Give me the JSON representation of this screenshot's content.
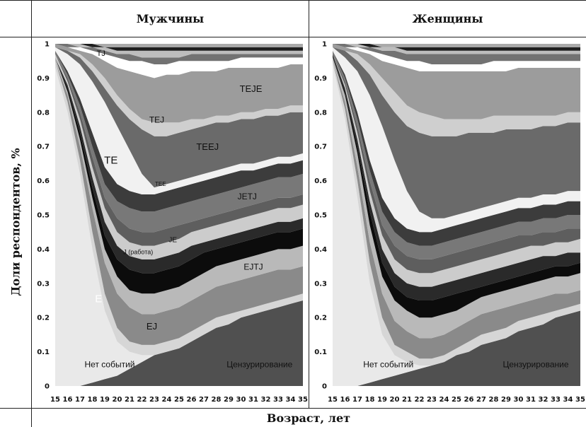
{
  "header": {
    "left": "Мужчины",
    "right": "Женщины"
  },
  "ylabel": "Доли респондентов, %",
  "xlabel": "Возраст, лет",
  "colors": [
    "#505050",
    "#e9e9e9",
    "#d6d6d6",
    "#8a8a8a",
    "#b9b9b9",
    "#0c0c0c",
    "#2a2a2a",
    "#cccccc",
    "#5e5e5e",
    "#787878",
    "#3c3c3c",
    "#f1f1f1",
    "#6a6a6a",
    "#cfcfcf",
    "#9c9c9c",
    "#ffffff",
    "#727272",
    "#bdbdbd",
    "#1f1f1f",
    "#aaaaaa"
  ],
  "chart_data": [
    {
      "type": "area",
      "title": "Мужчины",
      "xlabel": "Возраст, лет",
      "ylabel": "Доли респондентов, %",
      "x": [
        15,
        16,
        17,
        18,
        19,
        20,
        21,
        22,
        23,
        24,
        25,
        26,
        27,
        28,
        29,
        30,
        31,
        32,
        33,
        34,
        35
      ],
      "ylim": [
        0,
        1
      ],
      "yticks": [
        "0",
        "0.1",
        "0.2",
        "0.3",
        "0.4",
        "0.5",
        "0.6",
        "0.7",
        "0.8",
        "0.9",
        "1"
      ],
      "boundaries": [
        [
          0.0,
          0.0,
          0.0,
          0.01,
          0.02,
          0.03,
          0.05,
          0.07,
          0.09,
          0.11,
          0.13,
          0.15,
          0.17,
          0.19,
          0.21,
          0.23,
          0.24,
          0.26,
          0.28,
          0.3,
          0.31
        ],
        [
          0.93,
          0.8,
          0.62,
          0.4,
          0.22,
          0.13,
          0.1,
          0.09,
          0.09,
          0.1,
          0.11,
          0.13,
          0.15,
          0.17,
          0.18,
          0.2,
          0.21,
          0.22,
          0.23,
          0.24,
          0.25
        ],
        [
          0.95,
          0.83,
          0.66,
          0.45,
          0.27,
          0.17,
          0.13,
          0.12,
          0.12,
          0.13,
          0.14,
          0.16,
          0.18,
          0.2,
          0.21,
          0.22,
          0.23,
          0.24,
          0.25,
          0.26,
          0.27
        ],
        [
          0.95,
          0.85,
          0.7,
          0.52,
          0.36,
          0.27,
          0.23,
          0.21,
          0.21,
          0.22,
          0.23,
          0.25,
          0.27,
          0.29,
          0.3,
          0.31,
          0.32,
          0.33,
          0.34,
          0.34,
          0.35
        ],
        [
          0.96,
          0.86,
          0.72,
          0.55,
          0.4,
          0.32,
          0.28,
          0.27,
          0.27,
          0.28,
          0.29,
          0.31,
          0.33,
          0.35,
          0.36,
          0.37,
          0.38,
          0.39,
          0.4,
          0.4,
          0.41
        ],
        [
          0.96,
          0.87,
          0.74,
          0.58,
          0.44,
          0.37,
          0.34,
          0.33,
          0.33,
          0.34,
          0.35,
          0.37,
          0.39,
          0.4,
          0.41,
          0.42,
          0.43,
          0.44,
          0.45,
          0.45,
          0.46
        ],
        [
          0.96,
          0.88,
          0.76,
          0.61,
          0.48,
          0.41,
          0.38,
          0.37,
          0.37,
          0.38,
          0.39,
          0.41,
          0.42,
          0.43,
          0.44,
          0.45,
          0.46,
          0.47,
          0.48,
          0.48,
          0.49
        ],
        [
          0.97,
          0.89,
          0.78,
          0.64,
          0.52,
          0.45,
          0.42,
          0.41,
          0.41,
          0.42,
          0.43,
          0.45,
          0.46,
          0.47,
          0.48,
          0.49,
          0.5,
          0.51,
          0.52,
          0.52,
          0.53
        ],
        [
          0.97,
          0.9,
          0.8,
          0.67,
          0.55,
          0.49,
          0.46,
          0.45,
          0.45,
          0.46,
          0.47,
          0.48,
          0.49,
          0.5,
          0.51,
          0.52,
          0.53,
          0.54,
          0.55,
          0.55,
          0.56
        ],
        [
          0.98,
          0.91,
          0.82,
          0.7,
          0.59,
          0.54,
          0.52,
          0.51,
          0.51,
          0.52,
          0.53,
          0.54,
          0.55,
          0.56,
          0.57,
          0.58,
          0.59,
          0.6,
          0.61,
          0.61,
          0.62
        ],
        [
          0.98,
          0.92,
          0.84,
          0.74,
          0.64,
          0.59,
          0.57,
          0.56,
          0.56,
          0.57,
          0.58,
          0.59,
          0.6,
          0.61,
          0.62,
          0.63,
          0.63,
          0.64,
          0.65,
          0.65,
          0.66
        ],
        [
          0.99,
          0.97,
          0.94,
          0.89,
          0.83,
          0.76,
          0.69,
          0.62,
          0.58,
          0.59,
          0.6,
          0.61,
          0.62,
          0.63,
          0.64,
          0.65,
          0.65,
          0.66,
          0.67,
          0.67,
          0.68
        ],
        [
          0.99,
          0.98,
          0.96,
          0.92,
          0.87,
          0.82,
          0.78,
          0.75,
          0.73,
          0.73,
          0.74,
          0.75,
          0.76,
          0.77,
          0.77,
          0.78,
          0.78,
          0.79,
          0.79,
          0.8,
          0.8
        ],
        [
          0.99,
          0.98,
          0.97,
          0.94,
          0.9,
          0.85,
          0.81,
          0.78,
          0.77,
          0.77,
          0.77,
          0.78,
          0.78,
          0.79,
          0.79,
          0.8,
          0.8,
          0.81,
          0.81,
          0.82,
          0.82
        ],
        [
          1.0,
          0.99,
          0.98,
          0.97,
          0.95,
          0.93,
          0.92,
          0.91,
          0.9,
          0.91,
          0.91,
          0.92,
          0.92,
          0.92,
          0.93,
          0.93,
          0.93,
          0.93,
          0.93,
          0.94,
          0.94
        ],
        [
          1.0,
          0.99,
          0.99,
          0.98,
          0.97,
          0.96,
          0.95,
          0.95,
          0.94,
          0.94,
          0.95,
          0.95,
          0.95,
          0.95,
          0.95,
          0.96,
          0.96,
          0.96,
          0.96,
          0.96,
          0.96
        ],
        [
          1.0,
          1.0,
          0.99,
          0.99,
          0.98,
          0.97,
          0.97,
          0.96,
          0.96,
          0.96,
          0.96,
          0.97,
          0.97,
          0.97,
          0.97,
          0.97,
          0.97,
          0.97,
          0.97,
          0.97,
          0.97
        ],
        [
          1.0,
          1.0,
          1.0,
          0.99,
          0.99,
          0.98,
          0.98,
          0.98,
          0.98,
          0.98,
          0.98,
          0.98,
          0.98,
          0.98,
          0.98,
          0.98,
          0.98,
          0.98,
          0.98,
          0.98,
          0.98
        ],
        [
          1.0,
          1.0,
          1.0,
          1.0,
          0.99,
          0.99,
          0.99,
          0.99,
          0.99,
          0.99,
          0.99,
          0.99,
          0.99,
          0.99,
          0.99,
          0.99,
          0.99,
          0.99,
          0.99,
          0.99,
          0.99
        ],
        [
          1.0,
          1.0,
          1.0,
          1.0,
          1.0,
          1.0,
          1.0,
          1.0,
          1.0,
          1.0,
          1.0,
          1.0,
          1.0,
          1.0,
          1.0,
          1.0,
          1.0,
          1.0,
          1.0,
          1.0,
          1.0
        ]
      ],
      "annotations": [
        {
          "text": "TJ",
          "x": 18.7,
          "y": 0.965,
          "size": 11,
          "color": "#111111"
        },
        {
          "text": "TEJE",
          "x": 30.8,
          "y": 0.86,
          "size": 13,
          "color": "#111111"
        },
        {
          "text": "TEJ",
          "x": 23.2,
          "y": 0.77,
          "size": 12,
          "color": "#111111"
        },
        {
          "text": "TEEJ",
          "x": 27.3,
          "y": 0.69,
          "size": 13,
          "color": "#111111"
        },
        {
          "text": "TE",
          "x": 19.5,
          "y": 0.65,
          "size": 15,
          "color": "#111111"
        },
        {
          "text": "TEE",
          "x": 23.5,
          "y": 0.585,
          "size": 8,
          "color": "#111111"
        },
        {
          "text": "JETJ",
          "x": 30.5,
          "y": 0.545,
          "size": 12,
          "color": "#111111"
        },
        {
          "text": "JE",
          "x": 24.5,
          "y": 0.42,
          "size": 10,
          "color": "#111111"
        },
        {
          "text": "J (работа)",
          "x": 21.7,
          "y": 0.385,
          "size": 9,
          "color": "#111111"
        },
        {
          "text": "EJTJ",
          "x": 31.0,
          "y": 0.34,
          "size": 12,
          "color": "#111111"
        },
        {
          "text": "E",
          "x": 18.5,
          "y": 0.245,
          "size": 15,
          "color": "#ffffff"
        },
        {
          "text": "EJ",
          "x": 22.8,
          "y": 0.165,
          "size": 13,
          "color": "#111111"
        },
        {
          "text": "Нет событий",
          "x": 19.4,
          "y": 0.055,
          "size": 12,
          "color": "#111111"
        },
        {
          "text": "Цензурирование",
          "x": 31.5,
          "y": 0.055,
          "size": 12,
          "color": "#111111"
        }
      ]
    },
    {
      "type": "area",
      "title": "Женщины",
      "xlabel": "Возраст, лет",
      "ylabel": "Доли респондентов, %",
      "x": [
        15,
        16,
        17,
        18,
        19,
        20,
        21,
        22,
        23,
        24,
        25,
        26,
        27,
        28,
        29,
        30,
        31,
        32,
        33,
        34,
        35
      ],
      "ylim": [
        0,
        1
      ],
      "yticks": [
        "0",
        "0.1",
        "0.2",
        "0.3",
        "0.4",
        "0.5",
        "0.6",
        "0.7",
        "0.8",
        "0.9",
        "1"
      ],
      "boundaries": [
        [
          0.0,
          0.0,
          0.0,
          0.01,
          0.02,
          0.03,
          0.04,
          0.05,
          0.06,
          0.07,
          0.09,
          0.11,
          0.13,
          0.14,
          0.16,
          0.18,
          0.19,
          0.21,
          0.22,
          0.23,
          0.25
        ],
        [
          0.94,
          0.78,
          0.55,
          0.3,
          0.15,
          0.09,
          0.07,
          0.06,
          0.06,
          0.07,
          0.09,
          0.1,
          0.12,
          0.13,
          0.14,
          0.16,
          0.17,
          0.18,
          0.2,
          0.21,
          0.22
        ],
        [
          0.95,
          0.81,
          0.6,
          0.36,
          0.2,
          0.12,
          0.1,
          0.08,
          0.08,
          0.09,
          0.11,
          0.13,
          0.15,
          0.16,
          0.17,
          0.19,
          0.2,
          0.21,
          0.22,
          0.23,
          0.24
        ],
        [
          0.95,
          0.83,
          0.64,
          0.42,
          0.27,
          0.19,
          0.16,
          0.14,
          0.14,
          0.15,
          0.17,
          0.19,
          0.21,
          0.22,
          0.23,
          0.24,
          0.25,
          0.26,
          0.27,
          0.27,
          0.28
        ],
        [
          0.96,
          0.85,
          0.68,
          0.47,
          0.32,
          0.25,
          0.22,
          0.2,
          0.2,
          0.21,
          0.22,
          0.24,
          0.26,
          0.27,
          0.28,
          0.29,
          0.3,
          0.31,
          0.32,
          0.32,
          0.33
        ],
        [
          0.96,
          0.86,
          0.7,
          0.51,
          0.36,
          0.29,
          0.26,
          0.25,
          0.25,
          0.26,
          0.27,
          0.28,
          0.29,
          0.3,
          0.31,
          0.32,
          0.33,
          0.34,
          0.35,
          0.35,
          0.36
        ],
        [
          0.97,
          0.87,
          0.72,
          0.54,
          0.4,
          0.33,
          0.3,
          0.29,
          0.29,
          0.3,
          0.31,
          0.32,
          0.33,
          0.34,
          0.35,
          0.36,
          0.37,
          0.38,
          0.38,
          0.39,
          0.39
        ],
        [
          0.97,
          0.88,
          0.74,
          0.57,
          0.44,
          0.37,
          0.34,
          0.33,
          0.33,
          0.34,
          0.35,
          0.36,
          0.37,
          0.38,
          0.39,
          0.4,
          0.41,
          0.41,
          0.42,
          0.42,
          0.43
        ],
        [
          0.97,
          0.89,
          0.76,
          0.6,
          0.47,
          0.41,
          0.38,
          0.37,
          0.37,
          0.38,
          0.39,
          0.4,
          0.41,
          0.42,
          0.43,
          0.44,
          0.44,
          0.45,
          0.45,
          0.46,
          0.46
        ],
        [
          0.98,
          0.9,
          0.78,
          0.63,
          0.51,
          0.45,
          0.42,
          0.41,
          0.41,
          0.42,
          0.43,
          0.44,
          0.45,
          0.46,
          0.47,
          0.48,
          0.48,
          0.49,
          0.49,
          0.5,
          0.5
        ],
        [
          0.98,
          0.91,
          0.8,
          0.66,
          0.55,
          0.49,
          0.46,
          0.45,
          0.45,
          0.46,
          0.47,
          0.48,
          0.49,
          0.5,
          0.51,
          0.52,
          0.52,
          0.53,
          0.53,
          0.54,
          0.54
        ],
        [
          0.99,
          0.96,
          0.92,
          0.85,
          0.76,
          0.66,
          0.57,
          0.51,
          0.49,
          0.49,
          0.5,
          0.51,
          0.52,
          0.53,
          0.54,
          0.55,
          0.55,
          0.56,
          0.56,
          0.57,
          0.57
        ],
        [
          0.99,
          0.98,
          0.95,
          0.91,
          0.85,
          0.8,
          0.76,
          0.74,
          0.73,
          0.73,
          0.73,
          0.74,
          0.74,
          0.74,
          0.75,
          0.75,
          0.75,
          0.76,
          0.76,
          0.77,
          0.77
        ],
        [
          0.99,
          0.98,
          0.97,
          0.94,
          0.9,
          0.86,
          0.82,
          0.8,
          0.79,
          0.78,
          0.78,
          0.78,
          0.78,
          0.79,
          0.79,
          0.79,
          0.79,
          0.79,
          0.79,
          0.8,
          0.8
        ],
        [
          1.0,
          0.99,
          0.98,
          0.97,
          0.95,
          0.94,
          0.93,
          0.92,
          0.92,
          0.92,
          0.92,
          0.92,
          0.92,
          0.92,
          0.92,
          0.93,
          0.93,
          0.93,
          0.93,
          0.93,
          0.93
        ],
        [
          1.0,
          0.99,
          0.99,
          0.98,
          0.97,
          0.96,
          0.95,
          0.95,
          0.94,
          0.94,
          0.94,
          0.94,
          0.94,
          0.95,
          0.95,
          0.95,
          0.95,
          0.95,
          0.95,
          0.95,
          0.95
        ],
        [
          1.0,
          1.0,
          0.99,
          0.99,
          0.98,
          0.98,
          0.97,
          0.97,
          0.97,
          0.97,
          0.97,
          0.97,
          0.97,
          0.97,
          0.97,
          0.97,
          0.97,
          0.97,
          0.97,
          0.97,
          0.97
        ],
        [
          1.0,
          1.0,
          1.0,
          0.99,
          0.99,
          0.99,
          0.98,
          0.98,
          0.98,
          0.98,
          0.98,
          0.98,
          0.98,
          0.98,
          0.98,
          0.98,
          0.98,
          0.98,
          0.98,
          0.98,
          0.98
        ],
        [
          1.0,
          1.0,
          1.0,
          1.0,
          0.99,
          0.99,
          0.99,
          0.99,
          0.99,
          0.99,
          0.99,
          0.99,
          0.99,
          0.99,
          0.99,
          0.99,
          0.99,
          0.99,
          0.99,
          0.99,
          0.99
        ],
        [
          1.0,
          1.0,
          1.0,
          1.0,
          1.0,
          1.0,
          1.0,
          1.0,
          1.0,
          1.0,
          1.0,
          1.0,
          1.0,
          1.0,
          1.0,
          1.0,
          1.0,
          1.0,
          1.0,
          1.0,
          1.0
        ]
      ],
      "annotations": [
        {
          "text": "Нет событий",
          "x": 19.5,
          "y": 0.055,
          "size": 12,
          "color": "#111111"
        },
        {
          "text": "Цензурирование",
          "x": 31.4,
          "y": 0.055,
          "size": 12,
          "color": "#111111"
        }
      ]
    }
  ]
}
